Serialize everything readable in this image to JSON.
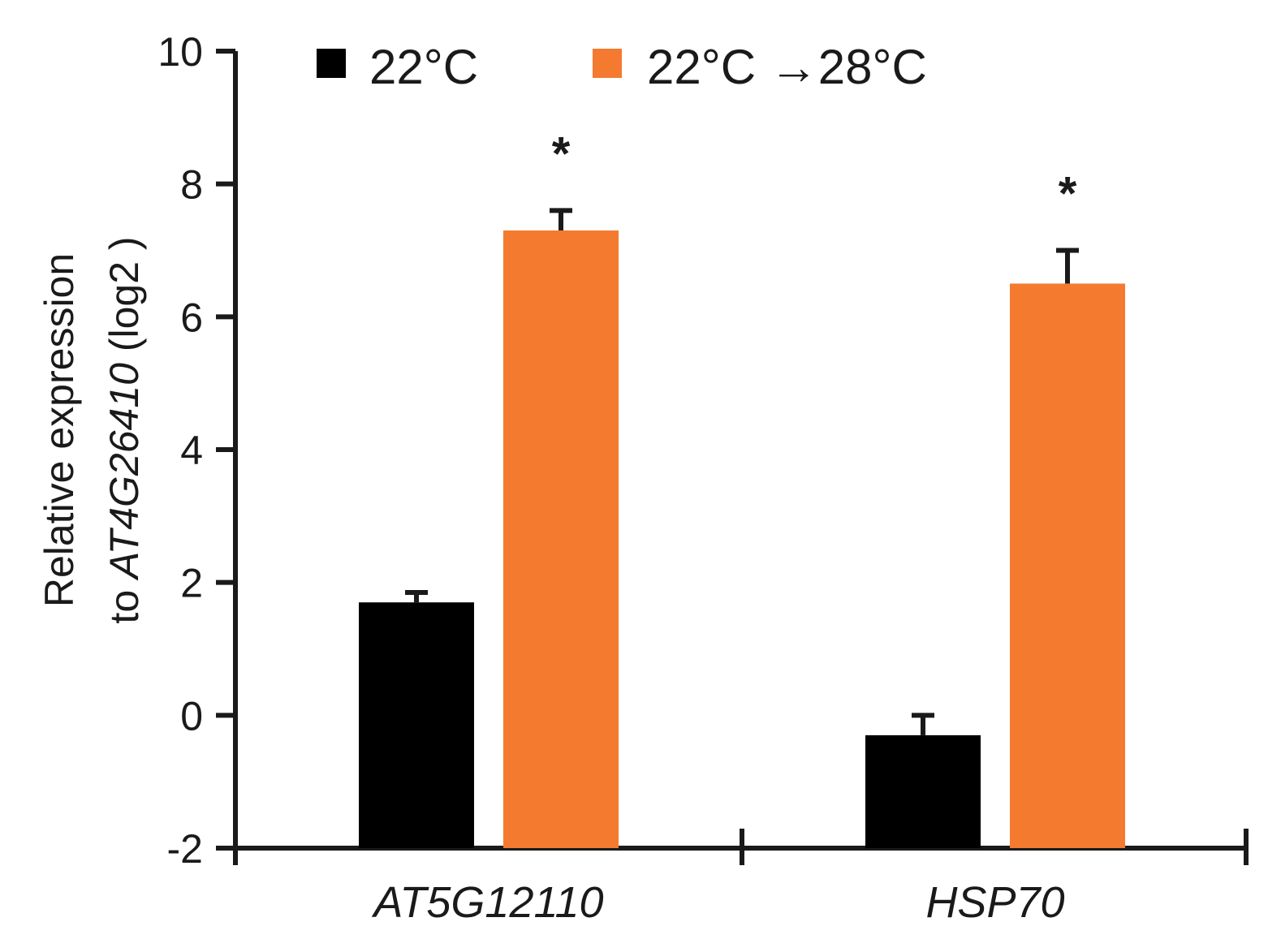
{
  "chart_data": {
    "type": "bar",
    "categories": [
      "AT5G12110",
      "HSP70"
    ],
    "series": [
      {
        "name": "22°C",
        "color": "#000000",
        "values": [
          1.7,
          -0.3
        ],
        "errors": [
          0.15,
          0.3
        ]
      },
      {
        "name": "22°C →28°C",
        "color": "#f47a30",
        "values": [
          7.3,
          6.5
        ],
        "errors": [
          0.3,
          0.5
        ]
      }
    ],
    "significance": [
      "*",
      "*"
    ],
    "ylim": [
      -2,
      10
    ],
    "yticks": [
      -2,
      0,
      2,
      4,
      6,
      8,
      10
    ],
    "ylabel_line1": "Relative expression",
    "ylabel_line2_prefix": "to ",
    "ylabel_line2_gene": "AT4G26410",
    "ylabel_line2_suffix": " (log2  )",
    "legend_position": "top"
  }
}
